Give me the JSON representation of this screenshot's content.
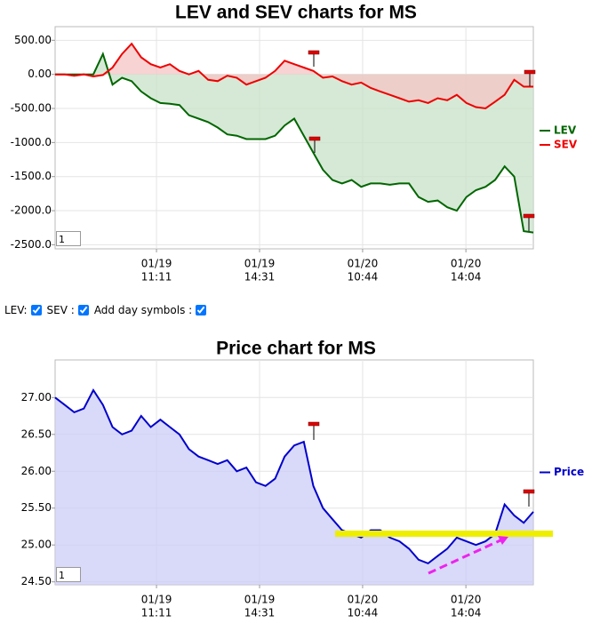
{
  "chart_data": [
    {
      "type": "line",
      "title": "LEV and SEV charts for MS",
      "x": [
        0,
        2,
        4,
        6,
        8,
        10,
        12,
        14,
        16,
        18,
        20,
        22,
        24,
        26,
        28,
        30,
        32,
        34,
        36,
        38,
        40,
        42,
        44,
        46,
        48,
        50,
        52,
        54,
        56,
        58,
        60,
        62,
        64,
        66,
        68,
        70,
        72,
        74,
        76,
        78,
        80,
        82,
        84,
        86,
        88,
        90,
        92,
        94,
        96,
        98,
        100
      ],
      "xlim": [
        0,
        100
      ],
      "xticks": [
        {
          "value": 21.2,
          "label": "01/19"
        },
        {
          "value": 42.75,
          "label": "01/19"
        },
        {
          "value": 64.3,
          "label": "01/20"
        },
        {
          "value": 85.9,
          "label": "01/20"
        }
      ],
      "xtick_times": [
        "11:11",
        "14:31",
        "10:44",
        "14:04"
      ],
      "ylim": [
        -2560,
        700
      ],
      "yticks": [
        {
          "value": 500,
          "label": "500.00"
        },
        {
          "value": 0,
          "label": "0.00"
        },
        {
          "value": -500,
          "label": "-500.00"
        },
        {
          "value": -1000,
          "label": "-1000.0"
        },
        {
          "value": -1500,
          "label": "-1500.0"
        },
        {
          "value": -2000,
          "label": "-2000.0"
        },
        {
          "value": -2500,
          "label": "-2500.0"
        }
      ],
      "grid": true,
      "legend": "right",
      "zoom_input": "1",
      "series": [
        {
          "name": "LEV",
          "color": "#006600",
          "fill": "#c8e2c8",
          "values": [
            0,
            0,
            0,
            0,
            0,
            300,
            -150,
            -50,
            -100,
            -250,
            -350,
            -420,
            -430,
            -450,
            -600,
            -650,
            -700,
            -780,
            -880,
            -900,
            -950,
            -950,
            -950,
            -900,
            -750,
            -650,
            -900,
            -1150,
            -1400,
            -1550,
            -1600,
            -1550,
            -1650,
            -1600,
            -1600,
            -1620,
            -1600,
            -1600,
            -1800,
            -1870,
            -1850,
            -1950,
            -2000,
            -1800,
            -1700,
            -1650,
            -1550,
            -1350,
            -1500,
            -2300,
            -2320
          ]
        },
        {
          "name": "SEV",
          "color": "#ee0000",
          "fill": "#f4c4c4",
          "values": [
            0,
            0,
            -20,
            0,
            -30,
            -10,
            100,
            300,
            450,
            250,
            150,
            100,
            150,
            50,
            0,
            50,
            -80,
            -100,
            -20,
            -50,
            -150,
            -100,
            -50,
            50,
            200,
            150,
            100,
            50,
            -50,
            -30,
            -100,
            -150,
            -120,
            -200,
            -250,
            -300,
            -350,
            -400,
            -380,
            -420,
            -350,
            -380,
            -300,
            -420,
            -480,
            -500,
            -400,
            -300,
            -80,
            -180,
            -180
          ]
        }
      ]
    },
    {
      "type": "line",
      "title": "Price chart for MS",
      "x": [
        0,
        2,
        4,
        6,
        8,
        10,
        12,
        14,
        16,
        18,
        20,
        22,
        24,
        26,
        28,
        30,
        32,
        34,
        36,
        38,
        40,
        42,
        44,
        46,
        48,
        50,
        52,
        54,
        56,
        58,
        60,
        62,
        64,
        66,
        68,
        70,
        72,
        74,
        76,
        78,
        80,
        82,
        84,
        86,
        88,
        90,
        92,
        94,
        96,
        98,
        100
      ],
      "xlim": [
        0,
        100
      ],
      "xticks": [
        {
          "value": 21.2,
          "label": "01/19"
        },
        {
          "value": 42.75,
          "label": "01/19"
        },
        {
          "value": 64.3,
          "label": "01/20"
        },
        {
          "value": 85.9,
          "label": "01/20"
        }
      ],
      "xtick_times": [
        "11:11",
        "14:31",
        "10:44",
        "14:04"
      ],
      "ylim": [
        24.46,
        27.51
      ],
      "yticks": [
        {
          "value": 27,
          "label": "27.00"
        },
        {
          "value": 26.5,
          "label": "26.50"
        },
        {
          "value": 26,
          "label": "26.00"
        },
        {
          "value": 25.5,
          "label": "25.50"
        },
        {
          "value": 25,
          "label": "25.00"
        },
        {
          "value": 24.5,
          "label": "24.50"
        }
      ],
      "grid": true,
      "legend": "right",
      "zoom_input": "1",
      "series": [
        {
          "name": "Price",
          "color": "#0000cc",
          "fill": "#ccccf8",
          "values": [
            27.0,
            26.9,
            26.8,
            26.85,
            27.1,
            26.9,
            26.6,
            26.5,
            26.55,
            26.75,
            26.6,
            26.7,
            26.6,
            26.5,
            26.3,
            26.2,
            26.15,
            26.1,
            26.15,
            26.0,
            26.05,
            25.85,
            25.8,
            25.9,
            26.2,
            26.35,
            26.4,
            25.8,
            25.5,
            25.35,
            25.2,
            25.15,
            25.1,
            25.2,
            25.2,
            25.1,
            25.05,
            24.95,
            24.8,
            24.75,
            24.85,
            24.95,
            25.1,
            25.05,
            25.0,
            25.05,
            25.15,
            25.55,
            25.4,
            25.3,
            25.45
          ]
        }
      ]
    }
  ],
  "controls": [
    {
      "label": "LEV:",
      "checked": true
    },
    {
      "label": "SEV :",
      "checked": true
    },
    {
      "label": "Add day symbols :",
      "checked": true
    }
  ]
}
